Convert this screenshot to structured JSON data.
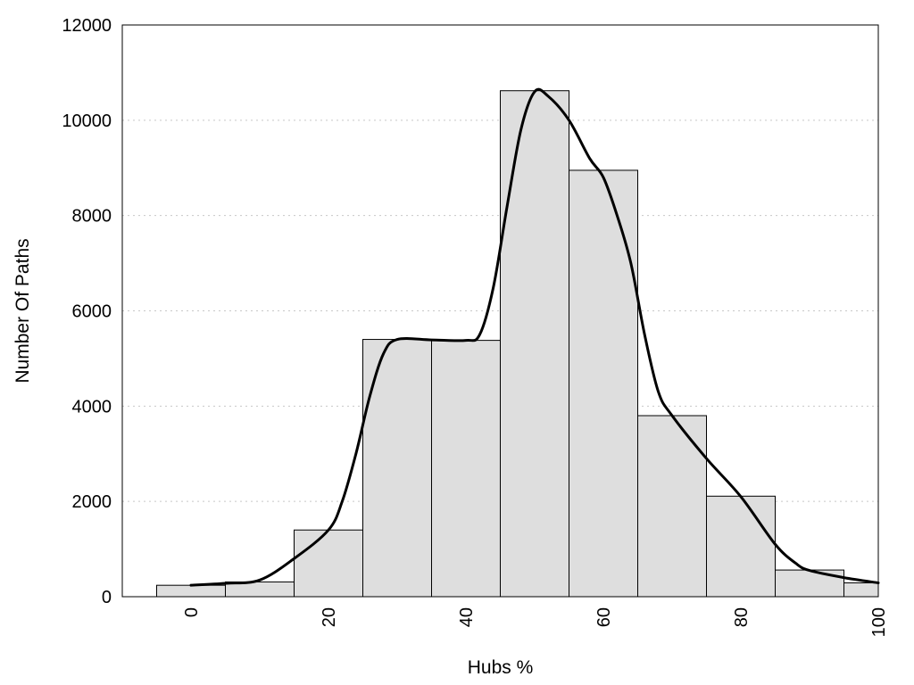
{
  "chart_data": {
    "type": "bar",
    "title": "",
    "xlabel": "Hubs %",
    "ylabel": "Number Of Paths",
    "xlim": [
      -10,
      100
    ],
    "ylim": [
      0,
      12000
    ],
    "x_ticks": [
      0,
      20,
      40,
      60,
      80,
      100
    ],
    "y_ticks": [
      0,
      2000,
      4000,
      6000,
      8000,
      10000,
      12000
    ],
    "grid": true,
    "legend": "none",
    "bar_width": 10,
    "bars": [
      {
        "x": 0,
        "value": 240
      },
      {
        "x": 10,
        "value": 310
      },
      {
        "x": 20,
        "value": 1400
      },
      {
        "x": 30,
        "value": 5400
      },
      {
        "x": 40,
        "value": 5380
      },
      {
        "x": 50,
        "value": 10620
      },
      {
        "x": 60,
        "value": 8950
      },
      {
        "x": 70,
        "value": 3800
      },
      {
        "x": 80,
        "value": 2110
      },
      {
        "x": 90,
        "value": 560
      },
      {
        "x": 100,
        "value": 290
      }
    ],
    "curve": {
      "x": [
        0,
        5,
        10,
        15,
        20,
        22,
        24,
        26,
        28,
        30,
        35,
        40,
        42,
        44,
        46,
        48,
        50,
        52,
        55,
        58,
        60,
        62,
        64,
        66,
        68,
        70,
        75,
        80,
        85,
        88,
        90,
        95,
        100
      ],
      "y": [
        240,
        280,
        350,
        800,
        1400,
        2000,
        3000,
        4200,
        5100,
        5400,
        5390,
        5380,
        5500,
        6500,
        8200,
        9800,
        10600,
        10500,
        10000,
        9200,
        8800,
        8000,
        7000,
        5500,
        4300,
        3800,
        2900,
        2100,
        1100,
        700,
        550,
        400,
        290
      ]
    }
  }
}
